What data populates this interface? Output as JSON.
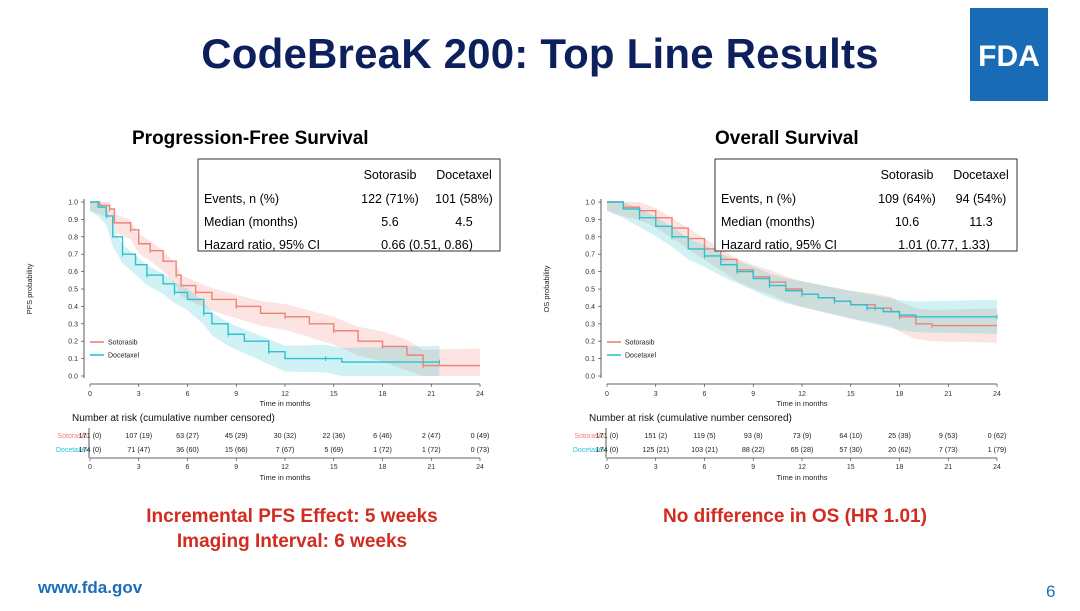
{
  "slide": {
    "title": "CodeBreaK 200: Top Line Results",
    "logo_text": "FDA",
    "footer_url": "www.fda.gov",
    "page_number": "6"
  },
  "colors": {
    "title": "#0d1f5c",
    "sotorasib": "#ef8275",
    "docetaxel": "#29c3cf",
    "finding": "#d22b1f",
    "brand_blue": "#1a6bb5"
  },
  "findings": {
    "pfs_line1": "Incremental PFS Effect: 5 weeks",
    "pfs_line2": "Imaging Interval: 6 weeks",
    "os_line1": "No difference in OS (HR 1.01)"
  },
  "chart_data": [
    {
      "type": "line",
      "title": "Progression-Free Survival",
      "xlabel": "Time in months",
      "ylabel": "PFS probability",
      "xlim": [
        0,
        24
      ],
      "ylim": [
        0,
        1.0
      ],
      "x_ticks": [
        "0",
        "3",
        "6",
        "9",
        "12",
        "15",
        "18",
        "21",
        "24"
      ],
      "y_ticks": [
        "0.0",
        "0.1",
        "0.2",
        "0.3",
        "0.4",
        "0.5",
        "0.6",
        "0.7",
        "0.8",
        "0.9",
        "1.0"
      ],
      "legend_position": "bottom-left",
      "legend": [
        "Sotorasib",
        "Docetaxel"
      ],
      "stats_table": {
        "header": [
          "",
          "Sotorasib",
          "Docetaxel"
        ],
        "rows": [
          [
            "Events, n (%)",
            "122 (71%)",
            "101 (58%)"
          ],
          [
            "Median (months)",
            "5.6",
            "4.5"
          ],
          [
            "Hazard ratio, 95% CI",
            "0.66 (0.51, 0.86)"
          ]
        ]
      },
      "series": [
        {
          "name": "Sotorasib",
          "points": [
            [
              0,
              1.0
            ],
            [
              0.6,
              0.98
            ],
            [
              1.2,
              0.96
            ],
            [
              1.5,
              0.88
            ],
            [
              2.5,
              0.84
            ],
            [
              3.0,
              0.76
            ],
            [
              3.7,
              0.72
            ],
            [
              4.5,
              0.66
            ],
            [
              5.3,
              0.58
            ],
            [
              5.6,
              0.52
            ],
            [
              6.5,
              0.48
            ],
            [
              7.5,
              0.44
            ],
            [
              9.0,
              0.4
            ],
            [
              10.5,
              0.36
            ],
            [
              12.0,
              0.34
            ],
            [
              13.5,
              0.3
            ],
            [
              15.0,
              0.26
            ],
            [
              16.5,
              0.2
            ],
            [
              18.0,
              0.17
            ],
            [
              19.5,
              0.12
            ],
            [
              20.5,
              0.06
            ],
            [
              24.0,
              0.06
            ]
          ]
        },
        {
          "name": "Docetaxel",
          "points": [
            [
              0,
              1.0
            ],
            [
              0.5,
              0.97
            ],
            [
              1.0,
              0.92
            ],
            [
              1.4,
              0.8
            ],
            [
              2.0,
              0.7
            ],
            [
              2.8,
              0.64
            ],
            [
              3.5,
              0.58
            ],
            [
              4.5,
              0.53
            ],
            [
              5.2,
              0.48
            ],
            [
              6.0,
              0.44
            ],
            [
              7.0,
              0.36
            ],
            [
              7.5,
              0.3
            ],
            [
              8.5,
              0.24
            ],
            [
              9.5,
              0.2
            ],
            [
              11.0,
              0.14
            ],
            [
              12.0,
              0.1
            ],
            [
              14.5,
              0.1
            ],
            [
              15.5,
              0.08
            ],
            [
              21.5,
              0.08
            ]
          ]
        }
      ],
      "risk_table": {
        "label": "Number at risk (cumulative number censored)",
        "xlabel": "Time in months",
        "rows": [
          {
            "name": "Sotorasib",
            "values": [
              "171 (0)",
              "107 (19)",
              "63 (27)",
              "45 (29)",
              "30 (32)",
              "22 (36)",
              "6 (46)",
              "2 (47)",
              "0 (49)"
            ]
          },
          {
            "name": "Docetaxel",
            "values": [
              "174 (0)",
              "71 (47)",
              "36 (60)",
              "15 (66)",
              "7 (67)",
              "5 (69)",
              "1 (72)",
              "1 (72)",
              "0 (73)"
            ]
          }
        ]
      }
    },
    {
      "type": "line",
      "title": "Overall Survival",
      "xlabel": "Time in months",
      "ylabel": "OS probability",
      "xlim": [
        0,
        24
      ],
      "ylim": [
        0,
        1.0
      ],
      "x_ticks": [
        "0",
        "3",
        "6",
        "9",
        "12",
        "15",
        "18",
        "21",
        "24"
      ],
      "y_ticks": [
        "0.0",
        "0.1",
        "0.2",
        "0.3",
        "0.4",
        "0.5",
        "0.6",
        "0.7",
        "0.8",
        "0.9",
        "1.0"
      ],
      "legend_position": "bottom-left",
      "legend": [
        "Sotorasib",
        "Docetaxel"
      ],
      "stats_table": {
        "header": [
          "",
          "Sotorasib",
          "Docetaxel"
        ],
        "rows": [
          [
            "Events, n (%)",
            "109 (64%)",
            "94 (54%)"
          ],
          [
            "Median (months)",
            "10.6",
            "11.3"
          ],
          [
            "Hazard ratio, 95% CI",
            "1.01 (0.77, 1.33)"
          ]
        ]
      },
      "series": [
        {
          "name": "Sotorasib",
          "points": [
            [
              0,
              1.0
            ],
            [
              1.0,
              0.97
            ],
            [
              2.0,
              0.95
            ],
            [
              3.0,
              0.91
            ],
            [
              4.0,
              0.85
            ],
            [
              5.0,
              0.79
            ],
            [
              6.0,
              0.73
            ],
            [
              7.0,
              0.67
            ],
            [
              8.0,
              0.61
            ],
            [
              9.0,
              0.57
            ],
            [
              10.0,
              0.54
            ],
            [
              11.0,
              0.5
            ],
            [
              12.0,
              0.47
            ],
            [
              13.0,
              0.45
            ],
            [
              14.0,
              0.43
            ],
            [
              15.0,
              0.41
            ],
            [
              16.5,
              0.39
            ],
            [
              17.5,
              0.37
            ],
            [
              18.0,
              0.34
            ],
            [
              19.0,
              0.3
            ],
            [
              20.0,
              0.29
            ],
            [
              24.0,
              0.29
            ]
          ]
        },
        {
          "name": "Docetaxel",
          "points": [
            [
              0,
              1.0
            ],
            [
              1.0,
              0.96
            ],
            [
              2.0,
              0.91
            ],
            [
              3.0,
              0.86
            ],
            [
              4.0,
              0.8
            ],
            [
              5.0,
              0.73
            ],
            [
              6.0,
              0.69
            ],
            [
              7.0,
              0.64
            ],
            [
              8.0,
              0.6
            ],
            [
              9.0,
              0.56
            ],
            [
              10.0,
              0.52
            ],
            [
              11.0,
              0.49
            ],
            [
              12.0,
              0.47
            ],
            [
              13.0,
              0.45
            ],
            [
              14.0,
              0.43
            ],
            [
              15.0,
              0.41
            ],
            [
              16.0,
              0.39
            ],
            [
              17.0,
              0.37
            ],
            [
              18.0,
              0.35
            ],
            [
              19.0,
              0.34
            ],
            [
              24.0,
              0.34
            ]
          ]
        }
      ],
      "risk_table": {
        "label": "Number at risk (cumulative number censored)",
        "xlabel": "Time in months",
        "rows": [
          {
            "name": "Sotorasib",
            "values": [
              "171 (0)",
              "151 (2)",
              "119 (5)",
              "93 (8)",
              "73 (9)",
              "64 (10)",
              "25 (39)",
              "9 (53)",
              "0 (62)"
            ]
          },
          {
            "name": "Docetaxel",
            "values": [
              "174 (0)",
              "125 (21)",
              "103 (21)",
              "88 (22)",
              "65 (28)",
              "57 (30)",
              "20 (62)",
              "7 (73)",
              "1 (79)"
            ]
          }
        ]
      }
    }
  ]
}
